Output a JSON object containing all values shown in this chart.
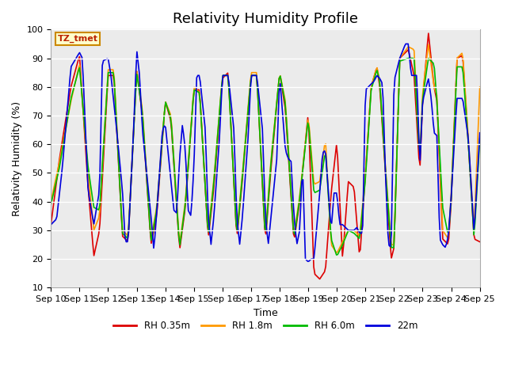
{
  "title": "Relativity Humidity Profile",
  "xlabel": "Time",
  "ylabel": "Relativity Humidity (%)",
  "ylim": [
    10,
    100
  ],
  "xlim": [
    0,
    15
  ],
  "x_tick_labels": [
    "Sep 10",
    "Sep 11",
    "Sep 12",
    "Sep 13",
    "Sep 14",
    "Sep 15",
    "Sep 16",
    "Sep 17",
    "Sep 18",
    "Sep 19",
    "Sep 20",
    "Sep 21",
    "Sep 22",
    "Sep 23",
    "Sep 24",
    "Sep 25"
  ],
  "yticks": [
    10,
    20,
    30,
    40,
    50,
    60,
    70,
    80,
    90,
    100
  ],
  "colors": {
    "rh035": "#dd0000",
    "rh18": "#ff9900",
    "rh60": "#00bb00",
    "rh22m": "#0000dd"
  },
  "legend_labels": [
    "RH 0.35m",
    "RH 1.8m",
    "RH 6.0m",
    "22m"
  ],
  "annotation_text": "TZ_tmet",
  "annotation_bbox_facecolor": "#ffffcc",
  "annotation_bbox_edgecolor": "#cc8800",
  "plot_bg_color": "#ebebeb",
  "grid_color": "#ffffff",
  "title_fontsize": 13,
  "label_fontsize": 9,
  "tick_fontsize": 8,
  "linewidth": 1.2
}
